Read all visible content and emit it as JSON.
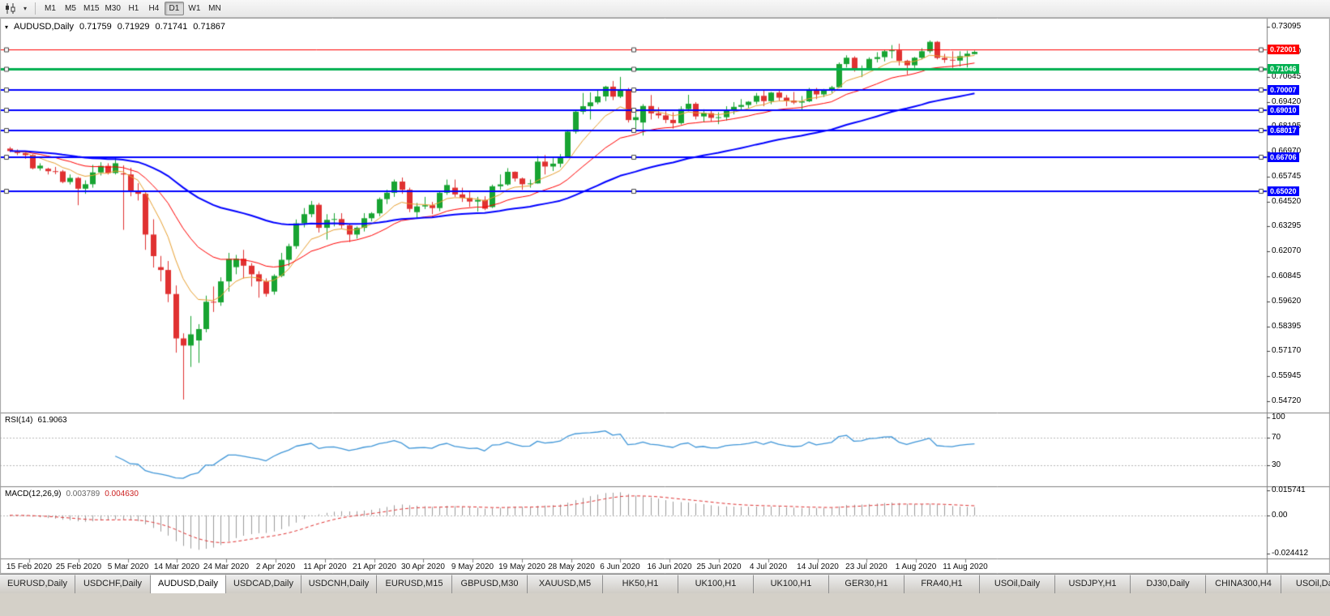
{
  "toolbar": {
    "chart_icon": "candlestick-chart-icon",
    "caret_icon": "dropdown-caret-icon",
    "periods": [
      "M1",
      "M5",
      "M15",
      "M30",
      "H1",
      "H4",
      "D1",
      "W1",
      "MN"
    ],
    "active_period": "D1"
  },
  "main_header": {
    "collapse_glyph": "▾",
    "symbol": "AUDUSD,Daily",
    "open": "0.71759",
    "high": "0.71929",
    "low": "0.71741",
    "close": "0.71867"
  },
  "rsi_header": {
    "name": "RSI(14)",
    "value": "61.9063"
  },
  "macd_header": {
    "name": "MACD(12,26,9)",
    "main_value": "0.003789",
    "signal_value": "0.004630"
  },
  "tabs": {
    "active_index": 2,
    "items": [
      "EURUSD,Daily",
      "USDCHF,Daily",
      "AUDUSD,Daily",
      "USDCAD,Daily",
      "USDCNH,Daily",
      "EURUSD,M15",
      "GBPUSD,M30",
      "XAUUSD,M5",
      "HK50,H1",
      "UK100,H1",
      "UK100,H1",
      "GER30,H1",
      "FRA40,H1",
      "USOil,Daily",
      "USDJPY,H1",
      "DJ30,Daily",
      "CHINA300,H4",
      "USOil,Daily"
    ]
  },
  "chart_data": {
    "type": "candlestick",
    "symbol": "AUDUSD",
    "timeframe": "Daily",
    "title": "AUDUSD,Daily 0.71759 0.71929 0.71741 0.71867",
    "y_range": [
      0.542,
      0.7346
    ],
    "y_axis": {
      "ticks": [
        "0.73095",
        "0.71870",
        "0.70645",
        "0.69420",
        "0.68195",
        "0.66970",
        "0.65745",
        "0.64520",
        "0.63295",
        "0.62070",
        "0.60845",
        "0.59620",
        "0.58395",
        "0.57170",
        "0.55945",
        "0.54720"
      ]
    },
    "x_axis": {
      "labels": [
        "15 Feb 2020",
        "25 Feb 2020",
        "5 Mar 2020",
        "14 Mar 2020",
        "24 Mar 2020",
        "2 Apr 2020",
        "11 Apr 2020",
        "21 Apr 2020",
        "30 Apr 2020",
        "9 May 2020",
        "19 May 2020",
        "28 May 2020",
        "6 Jun 2020",
        "16 Jun 2020",
        "25 Jun 2020",
        "4 Jul 2020",
        "14 Jul 2020",
        "23 Jul 2020",
        "1 Aug 2020",
        "11 Aug 2020"
      ]
    },
    "colors": {
      "bull": "#18a432",
      "bear": "#e03131",
      "ma_fast": "#e8a030",
      "ma_mid": "#ff0000",
      "ma_slow": "#0000ff",
      "rsi_line": "#3f96d8",
      "macd_histogram": "#9b9b9b",
      "macd_signal": "#e03131",
      "grid": "#b8b8b8",
      "axis": "#808080"
    },
    "levels": [
      {
        "price": 0.72001,
        "label": "0.72001",
        "color": "#ff0000",
        "width": 1
      },
      {
        "price": 0.71046,
        "label": "0.71046",
        "color": "#00b050",
        "width": 3
      },
      {
        "price": 0.70007,
        "label": "0.70007",
        "color": "#0000ff",
        "width": 2
      },
      {
        "price": 0.6901,
        "label": "0.69010",
        "color": "#0000ff",
        "width": 2
      },
      {
        "price": 0.68017,
        "label": "0.68017",
        "color": "#0000ff",
        "width": 2
      },
      {
        "price": 0.66706,
        "label": "0.66706",
        "color": "#0000ff",
        "width": 2
      },
      {
        "price": 0.6502,
        "label": "0.65020",
        "color": "#0000ff",
        "width": 2
      }
    ],
    "moving_averages": [
      {
        "type": "ema",
        "period": 8,
        "color": "#e8a030",
        "width": 1
      },
      {
        "type": "ema",
        "period": 20,
        "color": "#ff0000",
        "width": 1
      },
      {
        "type": "ema",
        "period": 55,
        "color": "#0000ff",
        "width": 2
      }
    ],
    "rsi": {
      "period": 14,
      "current": 61.9063,
      "levels": [
        70,
        30
      ],
      "axis_ticks": [
        "100",
        "70",
        "30"
      ],
      "range": [
        0,
        105
      ]
    },
    "macd": {
      "fast": 12,
      "slow": 26,
      "signal_period": 9,
      "current_main": 0.003789,
      "current_signal": 0.00463,
      "axis_ticks": [
        "0.015741",
        "0.00",
        "-0.024412"
      ],
      "range": [
        0.0175,
        -0.027
      ]
    },
    "candles": [
      [
        0.6712,
        0.672,
        0.6695,
        0.67
      ],
      [
        0.67,
        0.6708,
        0.668,
        0.669
      ],
      [
        0.669,
        0.6695,
        0.6662,
        0.668
      ],
      [
        0.668,
        0.6684,
        0.661,
        0.6615
      ],
      [
        0.6615,
        0.664,
        0.6604,
        0.6628
      ],
      [
        0.6613,
        0.6618,
        0.6585,
        0.6601
      ],
      [
        0.6601,
        0.6622,
        0.6586,
        0.66
      ],
      [
        0.66,
        0.6607,
        0.6542,
        0.6548
      ],
      [
        0.6548,
        0.6585,
        0.6536,
        0.6568
      ],
      [
        0.6568,
        0.6573,
        0.6434,
        0.6515
      ],
      [
        0.6515,
        0.6556,
        0.649,
        0.6537
      ],
      [
        0.6537,
        0.6632,
        0.652,
        0.6595
      ],
      [
        0.6595,
        0.6645,
        0.658,
        0.6627
      ],
      [
        0.6627,
        0.664,
        0.6585,
        0.6592
      ],
      [
        0.6592,
        0.6668,
        0.6585,
        0.664
      ],
      [
        0.659,
        0.663,
        0.6313,
        0.6585
      ],
      [
        0.6585,
        0.6618,
        0.6478,
        0.65
      ],
      [
        0.65,
        0.6542,
        0.6457,
        0.649
      ],
      [
        0.649,
        0.6505,
        0.6215,
        0.629
      ],
      [
        0.629,
        0.6365,
        0.6128,
        0.6184
      ],
      [
        0.613,
        0.6185,
        0.606,
        0.6116
      ],
      [
        0.6116,
        0.616,
        0.5958,
        0.5998
      ],
      [
        0.5998,
        0.604,
        0.571,
        0.578
      ],
      [
        0.578,
        0.5805,
        0.548,
        0.5745
      ],
      [
        0.5745,
        0.589,
        0.564,
        0.58
      ],
      [
        0.577,
        0.585,
        0.566,
        0.5826
      ],
      [
        0.5826,
        0.599,
        0.581,
        0.596
      ],
      [
        0.596,
        0.6035,
        0.591,
        0.5957
      ],
      [
        0.5957,
        0.608,
        0.594,
        0.606
      ],
      [
        0.606,
        0.62,
        0.601,
        0.617
      ],
      [
        0.613,
        0.619,
        0.6095,
        0.6171
      ],
      [
        0.6171,
        0.6215,
        0.6075,
        0.6137
      ],
      [
        0.6137,
        0.615,
        0.6035,
        0.6095
      ],
      [
        0.6095,
        0.611,
        0.598,
        0.606
      ],
      [
        0.606,
        0.6075,
        0.5985,
        0.5999
      ],
      [
        0.601,
        0.6095,
        0.5995,
        0.6087
      ],
      [
        0.6087,
        0.62,
        0.608,
        0.6166
      ],
      [
        0.6166,
        0.6245,
        0.6135,
        0.6233
      ],
      [
        0.6233,
        0.6364,
        0.622,
        0.6345
      ],
      [
        0.6345,
        0.642,
        0.6325,
        0.639
      ],
      [
        0.639,
        0.6455,
        0.6375,
        0.6436
      ],
      [
        0.6436,
        0.6445,
        0.63,
        0.6323
      ],
      [
        0.6323,
        0.639,
        0.6265,
        0.6362
      ],
      [
        0.6362,
        0.6395,
        0.633,
        0.6366
      ],
      [
        0.6366,
        0.6395,
        0.632,
        0.6335
      ],
      [
        0.6335,
        0.634,
        0.6253,
        0.629
      ],
      [
        0.629,
        0.633,
        0.627,
        0.6323
      ],
      [
        0.6323,
        0.6395,
        0.6305,
        0.637
      ],
      [
        0.637,
        0.64,
        0.6355,
        0.6394
      ],
      [
        0.6394,
        0.6472,
        0.638,
        0.6464
      ],
      [
        0.6464,
        0.651,
        0.644,
        0.6495
      ],
      [
        0.6495,
        0.656,
        0.6475,
        0.655
      ],
      [
        0.655,
        0.657,
        0.649,
        0.651
      ],
      [
        0.651,
        0.652,
        0.64,
        0.6416
      ],
      [
        0.64,
        0.6445,
        0.6372,
        0.6428
      ],
      [
        0.6428,
        0.6475,
        0.6415,
        0.6434
      ],
      [
        0.6434,
        0.645,
        0.639,
        0.642
      ],
      [
        0.642,
        0.6505,
        0.6405,
        0.6495
      ],
      [
        0.6495,
        0.656,
        0.6485,
        0.6533
      ],
      [
        0.652,
        0.656,
        0.6475,
        0.6487
      ],
      [
        0.6487,
        0.652,
        0.645,
        0.647
      ],
      [
        0.647,
        0.6505,
        0.6425,
        0.6452
      ],
      [
        0.6452,
        0.6475,
        0.6403,
        0.646
      ],
      [
        0.646,
        0.6478,
        0.641,
        0.6417
      ],
      [
        0.6425,
        0.6535,
        0.642,
        0.6527
      ],
      [
        0.6527,
        0.6585,
        0.651,
        0.6536
      ],
      [
        0.6536,
        0.6616,
        0.653,
        0.6598
      ],
      [
        0.6598,
        0.66,
        0.655,
        0.6565
      ],
      [
        0.6565,
        0.657,
        0.651,
        0.6537
      ],
      [
        0.6537,
        0.656,
        0.652,
        0.6541
      ],
      [
        0.6541,
        0.6675,
        0.654,
        0.6648
      ],
      [
        0.6648,
        0.668,
        0.6585,
        0.6624
      ],
      [
        0.6624,
        0.6665,
        0.6602,
        0.6638
      ],
      [
        0.6638,
        0.6685,
        0.662,
        0.6667
      ],
      [
        0.667,
        0.6805,
        0.667,
        0.6795
      ],
      [
        0.6795,
        0.69,
        0.6785,
        0.6893
      ],
      [
        0.6893,
        0.6985,
        0.688,
        0.692
      ],
      [
        0.692,
        0.6988,
        0.6855,
        0.6939
      ],
      [
        0.6939,
        0.7,
        0.693,
        0.6968
      ],
      [
        0.6968,
        0.702,
        0.6945,
        0.7016
      ],
      [
        0.7016,
        0.7044,
        0.695,
        0.6967
      ],
      [
        0.6967,
        0.7064,
        0.696,
        0.7001
      ],
      [
        0.7001,
        0.701,
        0.684,
        0.6852
      ],
      [
        0.6852,
        0.691,
        0.68,
        0.6866
      ],
      [
        0.684,
        0.693,
        0.6776,
        0.6921
      ],
      [
        0.6921,
        0.6975,
        0.6855,
        0.6885
      ],
      [
        0.6885,
        0.6915,
        0.686,
        0.6875
      ],
      [
        0.6875,
        0.6895,
        0.6837,
        0.6853
      ],
      [
        0.6853,
        0.689,
        0.681,
        0.6837
      ],
      [
        0.6837,
        0.692,
        0.683,
        0.6906
      ],
      [
        0.6906,
        0.6976,
        0.6895,
        0.6932
      ],
      [
        0.6932,
        0.694,
        0.6855,
        0.687
      ],
      [
        0.687,
        0.6905,
        0.6842,
        0.6886
      ],
      [
        0.6886,
        0.69,
        0.6845,
        0.6863
      ],
      [
        0.6863,
        0.689,
        0.6832,
        0.6866
      ],
      [
        0.6866,
        0.692,
        0.685,
        0.6903
      ],
      [
        0.6903,
        0.694,
        0.688,
        0.6917
      ],
      [
        0.6917,
        0.6955,
        0.69,
        0.6926
      ],
      [
        0.6926,
        0.6945,
        0.691,
        0.6942
      ],
      [
        0.6942,
        0.6985,
        0.693,
        0.6971
      ],
      [
        0.6971,
        0.6998,
        0.692,
        0.6945
      ],
      [
        0.6945,
        0.699,
        0.693,
        0.6987
      ],
      [
        0.6987,
        0.7,
        0.6945,
        0.6962
      ],
      [
        0.6962,
        0.6975,
        0.692,
        0.6948
      ],
      [
        0.6948,
        0.699,
        0.693,
        0.6938
      ],
      [
        0.6938,
        0.697,
        0.69,
        0.6944
      ],
      [
        0.6944,
        0.701,
        0.694,
        0.7004
      ],
      [
        0.7004,
        0.701,
        0.6955,
        0.6978
      ],
      [
        0.6978,
        0.7005,
        0.6965,
        0.6996
      ],
      [
        0.6996,
        0.702,
        0.6985,
        0.7013
      ],
      [
        0.7013,
        0.7135,
        0.701,
        0.7127
      ],
      [
        0.7127,
        0.717,
        0.711,
        0.7158
      ],
      [
        0.7158,
        0.7165,
        0.709,
        0.7099
      ],
      [
        0.7099,
        0.712,
        0.7063,
        0.7106
      ],
      [
        0.7106,
        0.716,
        0.7095,
        0.7152
      ],
      [
        0.7152,
        0.7185,
        0.7135,
        0.7161
      ],
      [
        0.7161,
        0.7197,
        0.714,
        0.719
      ],
      [
        0.719,
        0.722,
        0.7155,
        0.7194
      ],
      [
        0.7194,
        0.7227,
        0.712,
        0.7143
      ],
      [
        0.7143,
        0.7148,
        0.7076,
        0.7121
      ],
      [
        0.7121,
        0.7162,
        0.7108,
        0.7158
      ],
      [
        0.7158,
        0.7205,
        0.715,
        0.719
      ],
      [
        0.719,
        0.7243,
        0.718,
        0.7236
      ],
      [
        0.7236,
        0.724,
        0.715,
        0.7157
      ],
      [
        0.7157,
        0.7177,
        0.7133,
        0.7148
      ],
      [
        0.7148,
        0.719,
        0.7108,
        0.7144
      ],
      [
        0.7144,
        0.719,
        0.7115,
        0.7166
      ],
      [
        0.7166,
        0.7192,
        0.711,
        0.7178
      ],
      [
        0.71759,
        0.71929,
        0.71741,
        0.71867
      ]
    ]
  }
}
